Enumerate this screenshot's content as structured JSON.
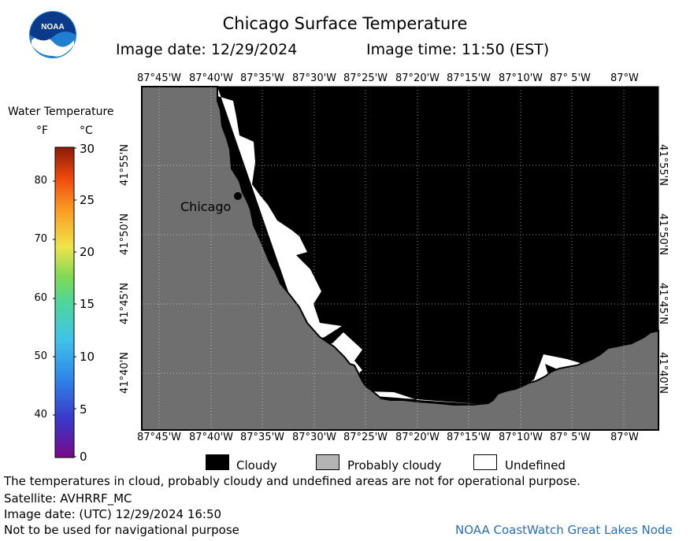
{
  "header": {
    "logo_text": "NOAA",
    "title": "Chicago Surface Temperature",
    "image_date": "Image date: 12/29/2024",
    "image_time": "Image time: 11:50 (EST)"
  },
  "colorbar": {
    "title": "Water Temperature",
    "unit_f": "°F",
    "unit_c": "°C",
    "f_ticks": [
      "80",
      "70",
      "60",
      "50",
      "40"
    ],
    "c_ticks": [
      "30",
      "25",
      "20",
      "15",
      "10",
      "5",
      "0"
    ]
  },
  "map": {
    "lon_labels": [
      "87°45'W",
      "87°40'W",
      "87°35'W",
      "87°30'W",
      "87°25'W",
      "87°20'W",
      "87°15'W",
      "87°10'W",
      "87° 5'W",
      "87°W"
    ],
    "lat_labels": [
      "41°55'N",
      "41°50'N",
      "41°45'N",
      "41°40'N"
    ],
    "city_label": "Chicago",
    "colors": {
      "land": "#6f6f6f",
      "cloudy": "#000000",
      "undefined": "#ffffff",
      "probably_cloudy": "#b4b4b4"
    }
  },
  "legend": {
    "cloudy": "Cloudy",
    "probably_cloudy": "Probably cloudy",
    "undefined": "Undefined"
  },
  "footer": {
    "disclaimer": "The temperatures in cloud, probably cloudy and undefined areas are not for operational purpose.",
    "satellite": "Satellite: AVHRRF_MC",
    "utc_date": "Image date: (UTC) 12/29/2024  16:50",
    "nav_warning": "Not to be used for navigational purpose",
    "credit": "NOAA CoastWatch Great Lakes Node"
  }
}
